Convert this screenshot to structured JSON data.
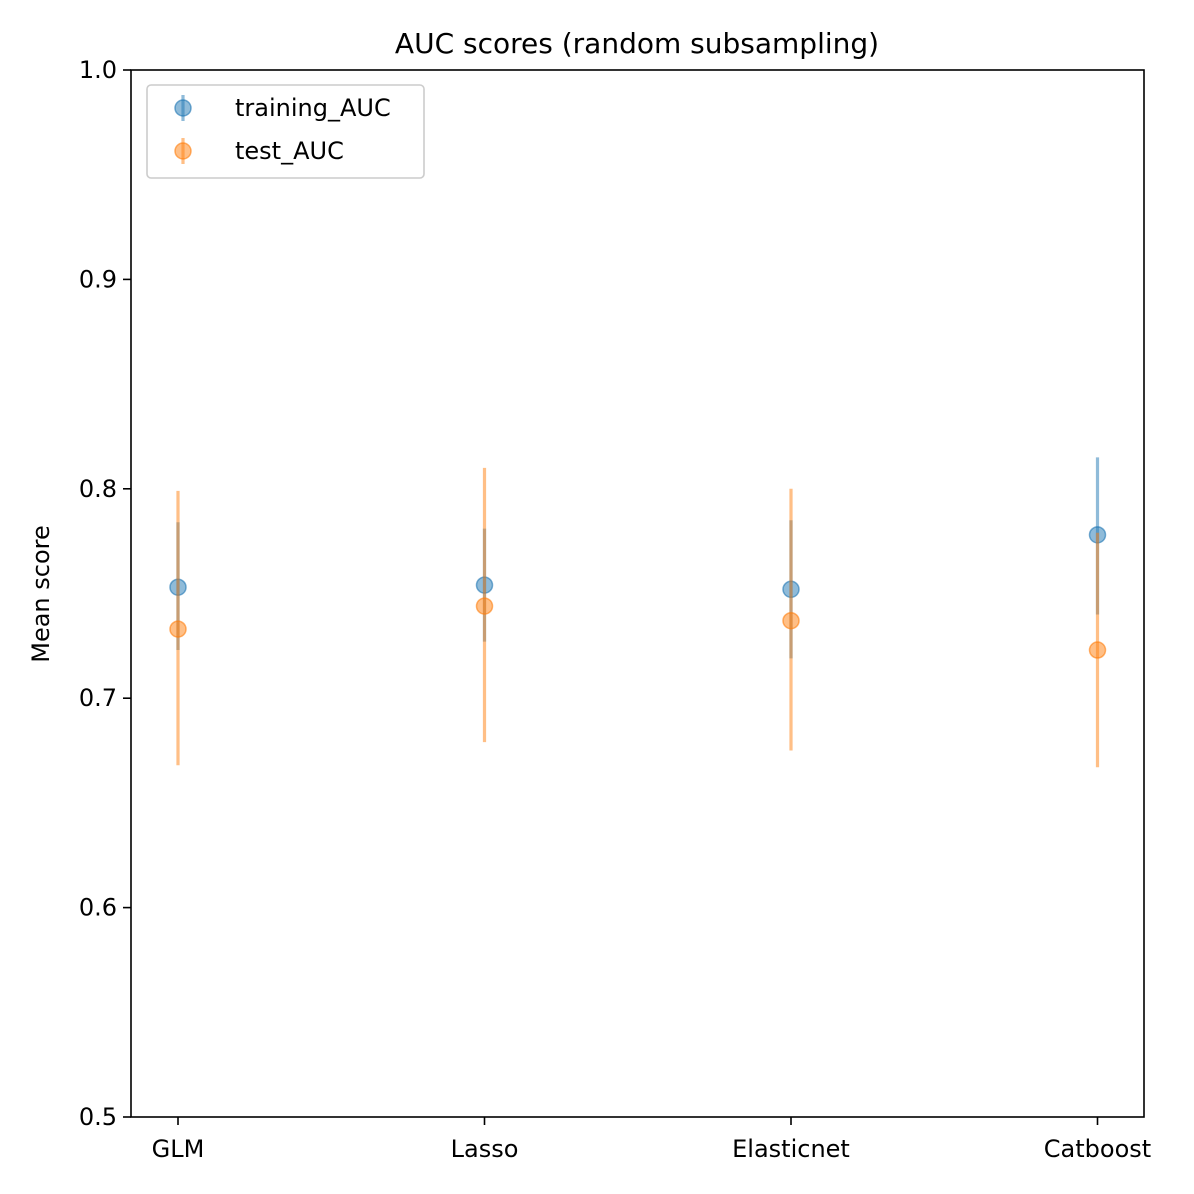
{
  "chart_data": {
    "type": "scatter",
    "title": "AUC scores (random subsampling)",
    "xlabel": "",
    "ylabel": "Mean score",
    "categories": [
      "GLM",
      "Lasso",
      "Elasticnet",
      "Catboost"
    ],
    "ylim": [
      0.5,
      1.0
    ],
    "yticks": [
      "0.5",
      "0.6",
      "0.7",
      "0.8",
      "0.9",
      "1.0"
    ],
    "grid": false,
    "legend_position": "top-left",
    "series": [
      {
        "name": "training_AUC",
        "color": "#1f77b4",
        "values": [
          0.753,
          0.754,
          0.752,
          0.778
        ],
        "lower": [
          0.723,
          0.727,
          0.719,
          0.74
        ],
        "upper": [
          0.784,
          0.781,
          0.785,
          0.815
        ]
      },
      {
        "name": "test_AUC",
        "color": "#ff7f0e",
        "values": [
          0.733,
          0.744,
          0.737,
          0.723
        ],
        "lower": [
          0.668,
          0.679,
          0.675,
          0.667
        ],
        "upper": [
          0.799,
          0.81,
          0.8,
          0.779
        ]
      }
    ]
  }
}
